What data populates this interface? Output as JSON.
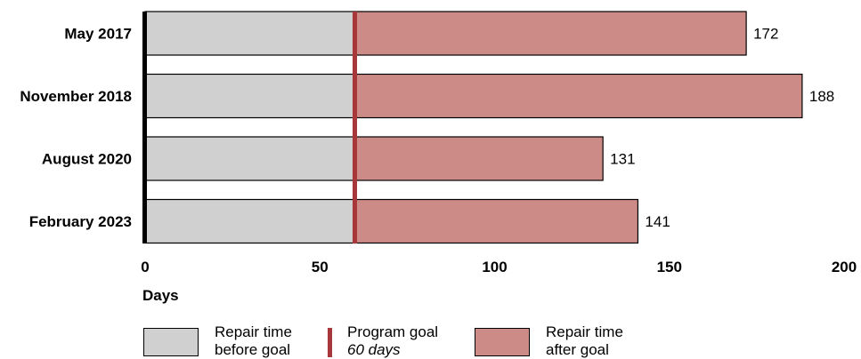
{
  "colors": {
    "before_goal": "#d0d0d0",
    "after_goal": "#cc8b86",
    "goal_line": "#a8373c",
    "axis": "#000000"
  },
  "legend": {
    "before_line1": "Repair time",
    "before_line2": "before goal",
    "goal_line1": "Program goal",
    "goal_line2": "60 days",
    "after_line1": "Repair time",
    "after_line2": "after goal"
  },
  "chart_data": {
    "type": "bar",
    "orientation": "horizontal",
    "stacked": true,
    "categories": [
      "May 2017",
      "November 2018",
      "August 2020",
      "February 2023"
    ],
    "series": [
      {
        "name": "Repair time before goal",
        "values": [
          60,
          60,
          60,
          60
        ]
      },
      {
        "name": "Repair time after goal",
        "values": [
          112,
          128,
          71,
          81
        ]
      }
    ],
    "totals": [
      172,
      188,
      131,
      141
    ],
    "total_labels": [
      "172",
      "188",
      "131",
      "141"
    ],
    "reference_line": {
      "name": "Program goal",
      "label": "60 days",
      "value": 60
    },
    "xlabel": "Days",
    "ylabel": "",
    "title": "",
    "xlim": [
      0,
      200
    ],
    "xticks": [
      0,
      50,
      100,
      150,
      200
    ],
    "xtick_labels": [
      "0",
      "50",
      "100",
      "150",
      "200"
    ],
    "grid": false,
    "legend_position": "bottom"
  }
}
